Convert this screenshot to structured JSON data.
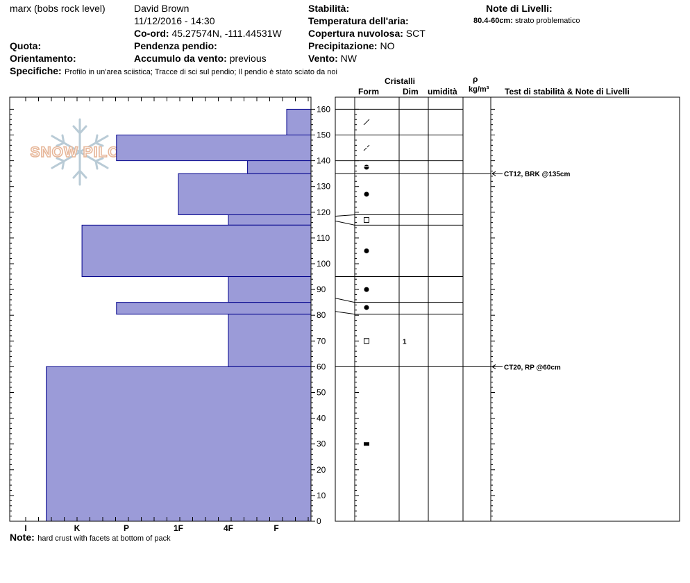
{
  "header": {
    "location": "marx (bobs rock level)",
    "observer": "David Brown",
    "datetime": "11/12/2016 - 14:30",
    "coord_label": "Co-ord:",
    "coord_value": "45.27574N, -111.44531W",
    "elevation_label": "Quota:",
    "elevation_value": "",
    "aspect_label": "Orientamento:",
    "aspect_value": "",
    "slope_label": "Pendenza pendio:",
    "slope_value": "",
    "wind_loading_label": "Accumulo da vento:",
    "wind_loading_value": "previous",
    "specifics_label": "Specifiche:",
    "specifics_value": "Profilo in un'area sciistica; Tracce di sci sul pendio; Il pendio è stato sciato da noi",
    "stability_label": "Stabilità:",
    "stability_value": "",
    "air_temp_label": "Temperatura dell'aria:",
    "air_temp_value": "",
    "cloud_label": "Copertura nuvolosa:",
    "cloud_value": "SCT",
    "precip_label": "Precipitazione:",
    "precip_value": "NO",
    "wind_label": "Vento:",
    "wind_value": "NW",
    "layer_notes_label": "Note di Livelli:",
    "layer_note_range": "80.4-60cm:",
    "layer_note_text": "strato problematico"
  },
  "footer": {
    "note_label": "Note:",
    "note_value": "hard crust with facets at bottom of pack"
  },
  "logo": {
    "text": "SNOW PILOT"
  },
  "columns": {
    "crystals": "Cristalli",
    "form": "Form",
    "size": "Dim",
    "moisture": "umidità",
    "rho": "ρ",
    "density_unit": "kg/m³",
    "stability_notes": "Test di stabilità & Note di Livelli"
  },
  "chart_data": {
    "type": "bar",
    "orientation": "horizontal",
    "ylim": [
      0,
      165
    ],
    "yticks": [
      0,
      10,
      20,
      30,
      40,
      50,
      60,
      70,
      80,
      90,
      100,
      110,
      120,
      130,
      140,
      150,
      160
    ],
    "hardness_scale": [
      "I",
      "K",
      "P",
      "1F",
      "4F",
      "F"
    ],
    "hardness_colors": {
      "fill": "#9b9bd8",
      "stroke": "#00008b"
    },
    "layers": [
      {
        "top": 160,
        "bottom": 150,
        "hardness": 0.7
      },
      {
        "top": 150,
        "bottom": 140,
        "hardness": 4.2
      },
      {
        "top": 140,
        "bottom": 135,
        "hardness": 1.6
      },
      {
        "top": 135,
        "bottom": 119,
        "hardness": 3.0
      },
      {
        "top": 119,
        "bottom": 115,
        "hardness": 2.0
      },
      {
        "top": 115,
        "bottom": 95,
        "hardness": 4.9
      },
      {
        "top": 95,
        "bottom": 85,
        "hardness": 2.0
      },
      {
        "top": 85,
        "bottom": 80.4,
        "hardness": 4.2
      },
      {
        "top": 80.4,
        "bottom": 60,
        "hardness": 2.0
      },
      {
        "top": 60,
        "bottom": 0,
        "hardness": 5.6
      }
    ],
    "grain_rows": [
      {
        "depth": 155,
        "form": "decomposing",
        "size": ""
      },
      {
        "depth": 145,
        "form": "fragmented",
        "size": ""
      },
      {
        "depth": 137.5,
        "form": "mixed-rounded",
        "size": ""
      },
      {
        "depth": 127,
        "form": "rounded",
        "size": ""
      },
      {
        "depth": 117,
        "form": "faceted",
        "size": ""
      },
      {
        "depth": 105,
        "form": "rounded",
        "size": ""
      },
      {
        "depth": 90,
        "form": "rounded",
        "size": ""
      },
      {
        "depth": 83,
        "form": "rounded",
        "size": ""
      },
      {
        "depth": 70,
        "form": "faceted",
        "size": "1"
      },
      {
        "depth": 30,
        "form": "crust",
        "size": ""
      }
    ],
    "stability_tests": [
      {
        "depth": 135,
        "label": "CT12, BRK @135cm"
      },
      {
        "depth": 60,
        "label": "CT20, RP @60cm"
      }
    ]
  }
}
